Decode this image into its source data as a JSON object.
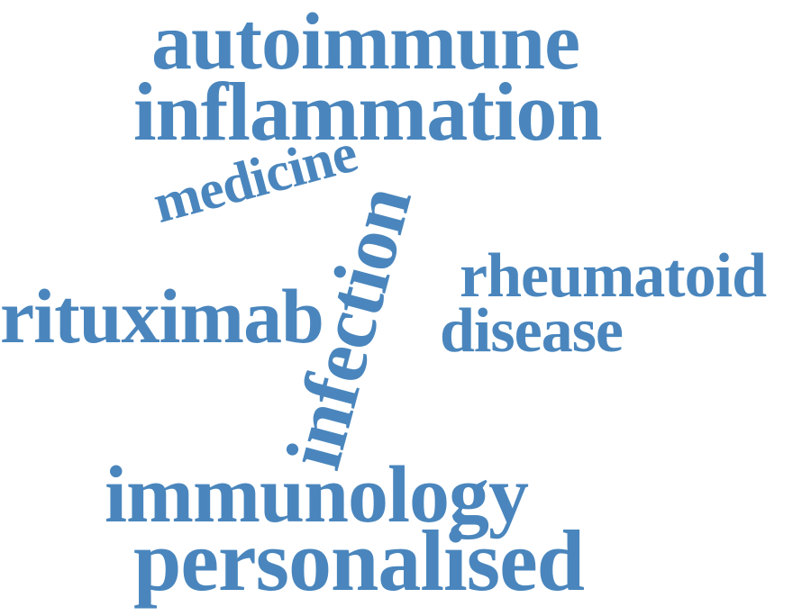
{
  "colors": {
    "word": "#4a86bd",
    "background": "#ffffff"
  },
  "words": {
    "autoimmune": "autoimmune",
    "inflammation": "inflammation",
    "medicine": "medicine",
    "infection": "infection",
    "rheumatoid": "rheumatoid",
    "rituximab": "rituximab",
    "disease": "disease",
    "immunology": "immunology",
    "personalised": "personalised"
  }
}
